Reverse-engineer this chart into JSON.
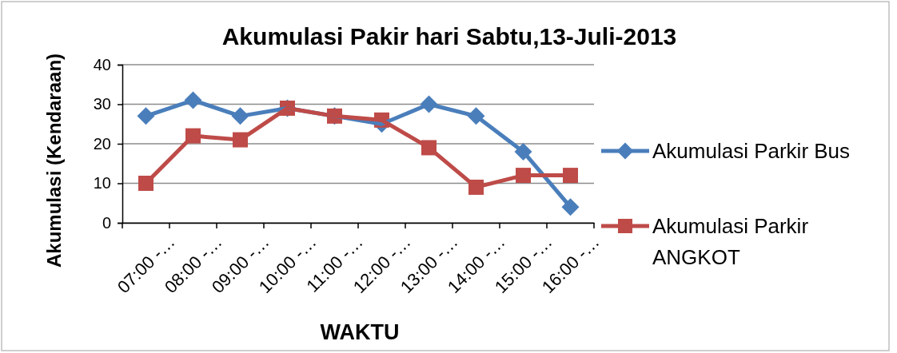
{
  "chart_data": {
    "type": "line",
    "title": "Akumulasi Pakir hari Sabtu,13-Juli-2013",
    "xlabel": "WAKTU",
    "ylabel": "Akumulasi (Kendaraan)",
    "categories": [
      "07:00 -…",
      "08:00 -…",
      "09:00 -…",
      "10:00 -…",
      "11:00 -…",
      "12:00 -…",
      "13:00 -…",
      "14:00 -…",
      "15:00 -…",
      "16:00 -…"
    ],
    "series": [
      {
        "name": "Akumulasi Parkir Bus",
        "color": "#4a7ebb",
        "marker": "diamond",
        "values": [
          27,
          31,
          27,
          29,
          27,
          25,
          30,
          27,
          18,
          4
        ]
      },
      {
        "name": "Akumulasi Parkir ANGKOT",
        "color": "#be4b48",
        "marker": "square",
        "values": [
          10,
          22,
          21,
          29,
          27,
          26,
          19,
          9,
          12,
          12
        ]
      }
    ],
    "ylim": [
      0,
      40
    ],
    "yticks": [
      0,
      10,
      20,
      30,
      40
    ],
    "grid": "y",
    "legend": "right",
    "line_style": "solid"
  }
}
